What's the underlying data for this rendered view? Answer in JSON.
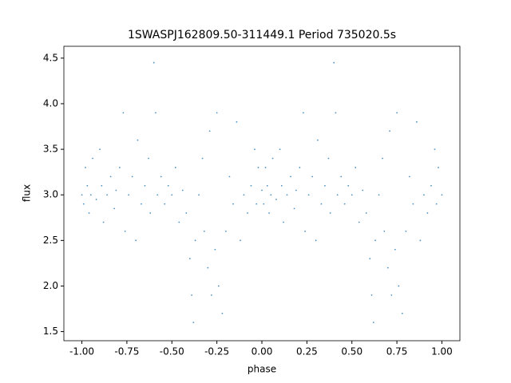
{
  "chart_data": {
    "type": "scatter",
    "title": "1SWASPJ162809.50-311449.1 Period 735020.5s",
    "x_label": "phase",
    "y_label": "flux",
    "xlim": [
      -1.1,
      1.1
    ],
    "ylim": [
      1.4,
      4.63
    ],
    "xticks": [
      {
        "value": -1,
        "label": "-1.00"
      },
      {
        "value": -0.75,
        "label": "-0.75"
      },
      {
        "value": -0.5,
        "label": "-0.50"
      },
      {
        "value": -0.25,
        "label": "-0.25"
      },
      {
        "value": 0,
        "label": "0.00"
      },
      {
        "value": 0.25,
        "label": "0.25"
      },
      {
        "value": 0.5,
        "label": "0.50"
      },
      {
        "value": 0.75,
        "label": "0.75"
      },
      {
        "value": 1,
        "label": "1.00"
      }
    ],
    "yticks": [
      1.5,
      {
        "value": 2,
        "label": "2.0"
      },
      2.5,
      {
        "value": 3,
        "label": "3.0"
      },
      3.5,
      {
        "value": 4,
        "label": "4.0"
      },
      4.5
    ],
    "color": "#1f77b4",
    "x": [
      -1.0,
      -0.99,
      -0.98,
      -0.97,
      -0.96,
      -0.95,
      -0.94,
      -0.92,
      -0.9,
      -0.89,
      -0.88,
      -0.86,
      -0.84,
      -0.82,
      -0.81,
      -0.79,
      -0.77,
      -0.76,
      -0.74,
      -0.72,
      -0.7,
      -0.69,
      -0.67,
      -0.65,
      -0.63,
      -0.62,
      -0.6,
      -0.59,
      -0.58,
      -0.56,
      -0.54,
      -0.52,
      -0.5,
      -0.48,
      -0.46,
      -0.44,
      -0.42,
      -0.4,
      -0.39,
      -0.38,
      -0.37,
      -0.35,
      -0.33,
      -0.32,
      -0.3,
      -0.29,
      -0.28,
      -0.26,
      -0.25,
      -0.24,
      -0.22,
      -0.2,
      -0.18,
      -0.16,
      -0.14,
      -0.12,
      -0.1,
      -0.08,
      -0.06,
      -0.04,
      -0.03,
      -0.02,
      0.0,
      0.01,
      0.02,
      0.03,
      0.04,
      0.05,
      0.06,
      0.08,
      0.1,
      0.11,
      0.12,
      0.14,
      0.16,
      0.18,
      0.19,
      0.21,
      0.23,
      0.24,
      0.26,
      0.28,
      0.3,
      0.31,
      0.33,
      0.35,
      0.37,
      0.38,
      0.4,
      0.41,
      0.42,
      0.44,
      0.46,
      0.48,
      0.5,
      0.52,
      0.54,
      0.56,
      0.58,
      0.6,
      0.61,
      0.62,
      0.63,
      0.65,
      0.67,
      0.68,
      0.7,
      0.71,
      0.72,
      0.74,
      0.75,
      0.76,
      0.78,
      0.8,
      0.82,
      0.84,
      0.86,
      0.88,
      0.9,
      0.92,
      0.94,
      0.96,
      0.97,
      0.98,
      1.0
    ],
    "y": [
      3.0,
      2.9,
      3.3,
      3.1,
      2.8,
      3.0,
      3.4,
      2.95,
      3.5,
      3.1,
      2.7,
      3.0,
      3.2,
      2.85,
      3.05,
      3.3,
      3.9,
      2.6,
      3.0,
      3.2,
      2.5,
      3.6,
      2.9,
      3.1,
      3.4,
      2.8,
      4.45,
      3.9,
      3.0,
      3.2,
      2.9,
      3.1,
      3.0,
      3.3,
      2.7,
      3.05,
      2.8,
      2.3,
      1.9,
      1.6,
      2.5,
      3.0,
      3.4,
      2.6,
      2.2,
      3.7,
      1.9,
      2.4,
      3.9,
      2.0,
      1.7,
      2.6,
      3.2,
      2.9,
      3.8,
      2.5,
      3.0,
      2.8,
      3.1,
      3.5,
      2.9,
      3.3,
      3.05,
      2.9,
      3.3,
      3.1,
      2.8,
      3.0,
      3.4,
      2.95,
      3.5,
      3.1,
      2.7,
      3.0,
      3.2,
      2.85,
      3.05,
      3.3,
      3.9,
      2.6,
      3.0,
      3.2,
      2.5,
      3.6,
      2.9,
      3.1,
      3.4,
      2.8,
      4.45,
      3.9,
      3.0,
      3.2,
      2.9,
      3.1,
      3.0,
      3.3,
      2.7,
      3.05,
      2.8,
      2.3,
      1.9,
      1.6,
      2.5,
      3.0,
      3.4,
      2.6,
      2.2,
      3.7,
      1.9,
      2.4,
      3.9,
      2.0,
      1.7,
      2.6,
      3.2,
      2.9,
      3.8,
      2.5,
      3.0,
      2.8,
      3.1,
      3.5,
      2.9,
      3.3,
      3.0
    ]
  }
}
